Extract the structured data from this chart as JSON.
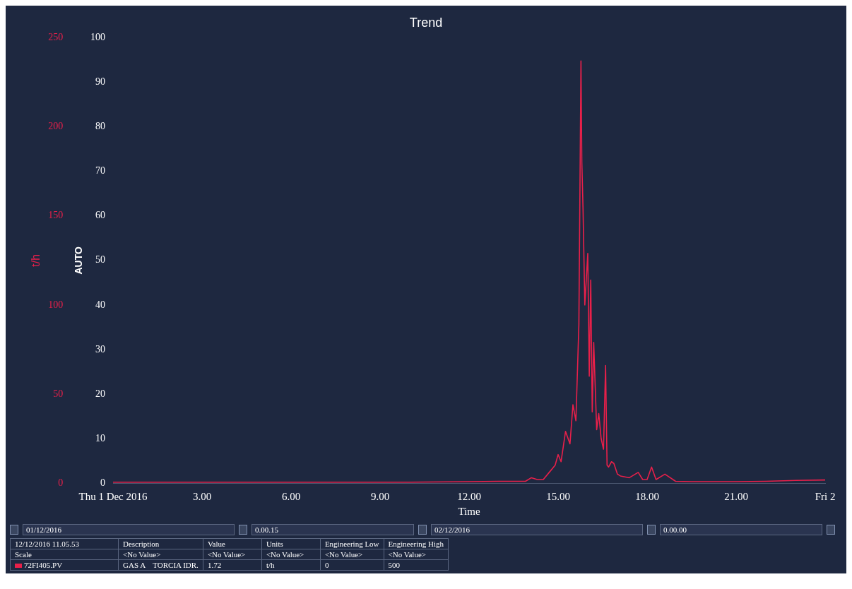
{
  "chart_data": {
    "type": "line",
    "title": "Trend",
    "xlabel": "Time",
    "ylabel": "t/h",
    "y2label": "AUTO",
    "xlim": [
      0,
      24
    ],
    "xticks": [
      {
        "value": 0,
        "label": "Thu 1 Dec 2016"
      },
      {
        "value": 3,
        "label": "3.00"
      },
      {
        "value": 6,
        "label": "6.00"
      },
      {
        "value": 9,
        "label": "9.00"
      },
      {
        "value": 12,
        "label": "12.00"
      },
      {
        "value": 15,
        "label": "15.00"
      },
      {
        "value": 18,
        "label": "18.00"
      },
      {
        "value": 21,
        "label": "21.00"
      },
      {
        "value": 24,
        "label": "Fri 2"
      }
    ],
    "ylim": [
      0,
      250
    ],
    "yticks": [
      0,
      50,
      100,
      150,
      200,
      250
    ],
    "y2lim": [
      0,
      100
    ],
    "y2ticks": [
      0,
      10,
      20,
      30,
      40,
      50,
      60,
      70,
      80,
      90,
      100
    ],
    "grid": false,
    "legend": false,
    "marker": "none",
    "line_style": "solid",
    "series": [
      {
        "color": "#e8204a",
        "axis": "y",
        "x": [
          0,
          2,
          4,
          6,
          8,
          10,
          12,
          13,
          13.9,
          14.1,
          14.3,
          14.5,
          14.7,
          14.9,
          15.0,
          15.1,
          15.25,
          15.4,
          15.5,
          15.6,
          15.7,
          15.77,
          15.8,
          15.84,
          15.9,
          16.0,
          16.05,
          16.1,
          16.15,
          16.2,
          16.3,
          16.37,
          16.45,
          16.53,
          16.6,
          16.65,
          16.7,
          16.8,
          16.88,
          17.0,
          17.1,
          17.4,
          17.7,
          17.85,
          18.0,
          18.15,
          18.3,
          18.6,
          18.96,
          19.5,
          20,
          21,
          22,
          23,
          24
        ],
        "values": [
          0.5,
          0.5,
          0.5,
          0.5,
          0.5,
          0.5,
          0.8,
          1,
          1,
          3,
          2,
          2,
          6,
          10,
          16,
          12,
          29,
          22,
          44,
          35,
          89,
          237,
          180,
          154,
          100,
          129,
          60,
          114,
          40,
          79,
          30,
          39,
          25,
          19,
          66,
          10,
          9,
          12,
          11,
          5,
          4,
          3,
          6,
          2,
          2,
          9,
          2,
          5,
          1,
          0.8,
          0.8,
          0.8,
          1,
          1.5,
          1.72
        ]
      }
    ],
    "annotations": [
      "01/12/2016",
      "0.00.15",
      "02/12/2016",
      "0.00.00",
      "12/12/2016 11.05.53",
      "Description",
      "Value",
      "Units",
      "Engineering Low",
      "Engineering High",
      "Scale",
      "<No Value>",
      "<No Value>",
      "<No Value>",
      "<No Value>",
      "<No Value>",
      "72FI405.PV",
      "GAS A    TORCIA IDR.",
      "1.72",
      "t/h",
      "0",
      "500"
    ]
  }
}
